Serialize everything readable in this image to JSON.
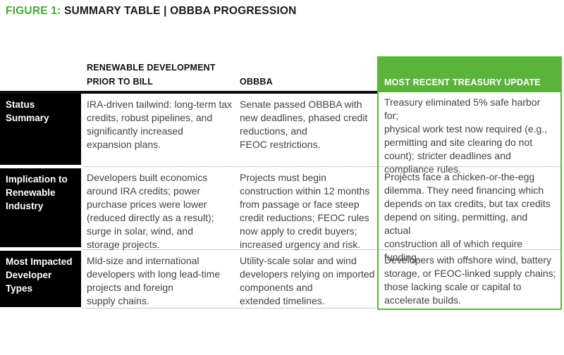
{
  "title": {
    "figure_label": "FIGURE 1:",
    "text": "SUMMARY TABLE | OBBBA PROGRESSION"
  },
  "colors": {
    "accent_green": "#5AB43C",
    "title_green": "#45A932",
    "row_label_bg": "#000000",
    "body_text": "#434343",
    "header_rule": "#0E0E0E",
    "dotted_divider": "#9B9B9B",
    "bottom_divider": "#C8C8C8"
  },
  "table": {
    "column_headers": {
      "prior_to_bill": "RENEWABLE DEVELOPMENT\nPRIOR TO BILL",
      "obbba": "OBBBA",
      "treasury_update": "MOST RECENT TREASURY UPDATE"
    },
    "rows": [
      {
        "label": "Status Summary",
        "prior_to_bill": "IRA-driven tailwind: long-term tax\ncredits, robust pipelines, and\nsignificantly increased\nexpansion plans.",
        "obbba": "Senate passed OBBBA with\nnew deadlines, phased credit\nreductions, and\nFEOC restrictions.",
        "treasury_update": "Treasury eliminated 5% safe harbor for;\nphysical work test now required (e.g.,\npermitting and site clearing do not\ncount); stricter deadlines and\ncompliance rules."
      },
      {
        "label": "Implication to\nRenewable\nIndustry",
        "prior_to_bill": "Developers built economics\naround IRA credits; power\npurchase prices were lower\n(reduced directly as a result);\nsurge in solar, wind, and\nstorage projects.",
        "obbba": "Projects must begin\nconstruction within 12 months\nfrom passage or face steep\ncredit reductions; FEOC rules\nnow apply to credit buyers;\nincreased urgency and risk.",
        "treasury_update": "Projects face a chicken-or-the-egg\ndilemma. They need financing which\ndepends on tax credits, but tax credits\ndepend on siting, permitting, and actual\nconstruction all of which require funding."
      },
      {
        "label": "Most Impacted\nDeveloper Types",
        "prior_to_bill": "Mid-size and international\ndevelopers with long lead-time\nprojects and foreign\nsupply chains.",
        "obbba": "Utility-scale solar and wind\ndevelopers relying on imported\ncomponents and\nextended timelines.",
        "treasury_update": "Developers with offshore wind, battery\nstorage, or FEOC-linked supply chains;\nthose lacking scale or capital to\naccelerate builds."
      }
    ]
  }
}
